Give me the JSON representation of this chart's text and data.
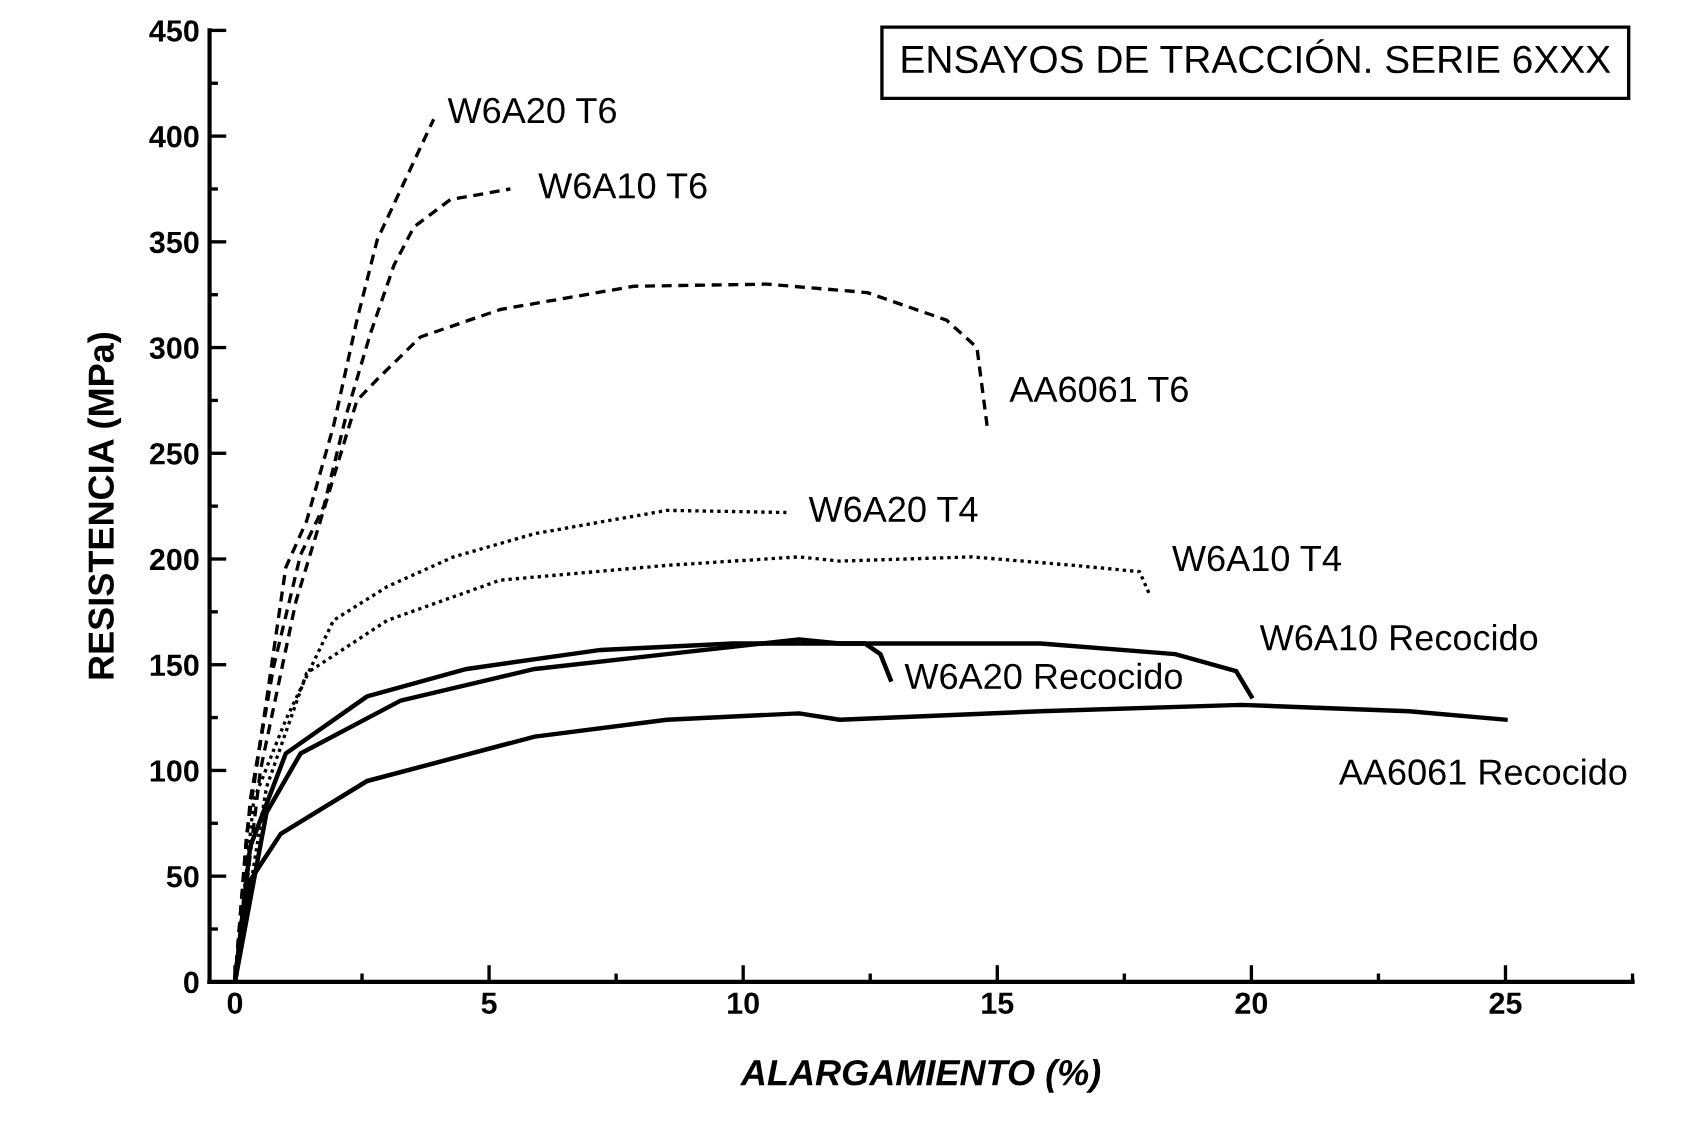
{
  "chart_data": {
    "type": "line",
    "title": "ENSAYOS DE TRACCIÓN. SERIE 6XXX",
    "xlabel": "ALARGAMIENTO (%)",
    "ylabel": "RESISTENCIA (MPa)",
    "xlim": [
      -0.5,
      27.5
    ],
    "ylim": [
      0,
      450
    ],
    "xticks": [
      0,
      5,
      10,
      15,
      20,
      25
    ],
    "yticks": [
      0,
      50,
      100,
      150,
      200,
      250,
      300,
      350,
      400,
      450
    ],
    "grid": false,
    "legend": false,
    "marker": "none",
    "series": [
      {
        "name": "W6A20 T6",
        "color": "#000000",
        "line_style": "dashed",
        "x": [
          0,
          0.23,
          0.62,
          1.0,
          1.41,
          1.94,
          2.4,
          2.8,
          3.91
        ],
        "values": [
          0,
          70,
          133,
          196,
          218,
          263,
          313,
          351,
          408
        ]
      },
      {
        "name": "W6A10 T6",
        "color": "#000000",
        "line_style": "dashed",
        "x": [
          0,
          0.3,
          0.76,
          1.29,
          1.75,
          2.2,
          2.67,
          3.13,
          3.52,
          4.24,
          5.42
        ],
        "values": [
          0,
          86,
          149,
          202,
          225,
          269,
          307,
          339,
          357,
          370,
          375
        ]
      },
      {
        "name": "AA6061 T6",
        "color": "#000000",
        "line_style": "dashed",
        "x": [
          0,
          0.5,
          1.2,
          2.4,
          2.8,
          3.65,
          5.22,
          7.85,
          10.47,
          12.44,
          14.0,
          14.6,
          14.8
        ],
        "values": [
          0,
          100,
          180,
          275,
          285,
          305,
          318,
          329,
          330,
          326,
          313,
          300,
          263
        ]
      },
      {
        "name": "W6A20 T4",
        "color": "#000000",
        "line_style": "dotted",
        "x": [
          0,
          0.37,
          1.0,
          1.94,
          3.0,
          4.3,
          5.9,
          8.5,
          10.85
        ],
        "values": [
          0,
          86,
          124,
          171,
          187,
          201,
          212,
          223,
          222
        ]
      },
      {
        "name": "W6A10 T4",
        "color": "#000000",
        "line_style": "dotted",
        "x": [
          0,
          0.62,
          1.41,
          3.0,
          5.22,
          8.5,
          11.1,
          11.9,
          14.5,
          16.5,
          17.8,
          18.0
        ],
        "values": [
          0,
          92,
          146,
          171,
          190,
          197,
          201,
          199,
          201,
          197,
          194,
          183
        ]
      },
      {
        "name": "W6A20 Recocido",
        "color": "#000000",
        "line_style": "solid",
        "x": [
          0,
          0.3,
          1.0,
          2.6,
          4.56,
          7.2,
          9.8,
          12.4,
          12.7,
          12.9
        ],
        "values": [
          0,
          64,
          108,
          135,
          148,
          157,
          160,
          160,
          155,
          143
        ]
      },
      {
        "name": "W6A10 Recocido",
        "color": "#000000",
        "line_style": "solid",
        "x": [
          0,
          0.62,
          1.29,
          3.26,
          5.9,
          8.5,
          11.1,
          11.9,
          15.85,
          18.5,
          19.7,
          20.0
        ],
        "values": [
          0,
          80,
          108,
          133,
          148,
          155,
          162,
          160,
          160,
          155,
          147,
          135
        ]
      },
      {
        "name": "AA6061 Recocido",
        "color": "#000000",
        "line_style": "solid",
        "x": [
          0,
          0.3,
          0.9,
          2.6,
          5.9,
          8.5,
          11.1,
          11.9,
          15.85,
          19.8,
          23.1,
          25.0
        ],
        "values": [
          0,
          48,
          70,
          95,
          116,
          124,
          127,
          124,
          128,
          131,
          128,
          124
        ]
      }
    ]
  }
}
